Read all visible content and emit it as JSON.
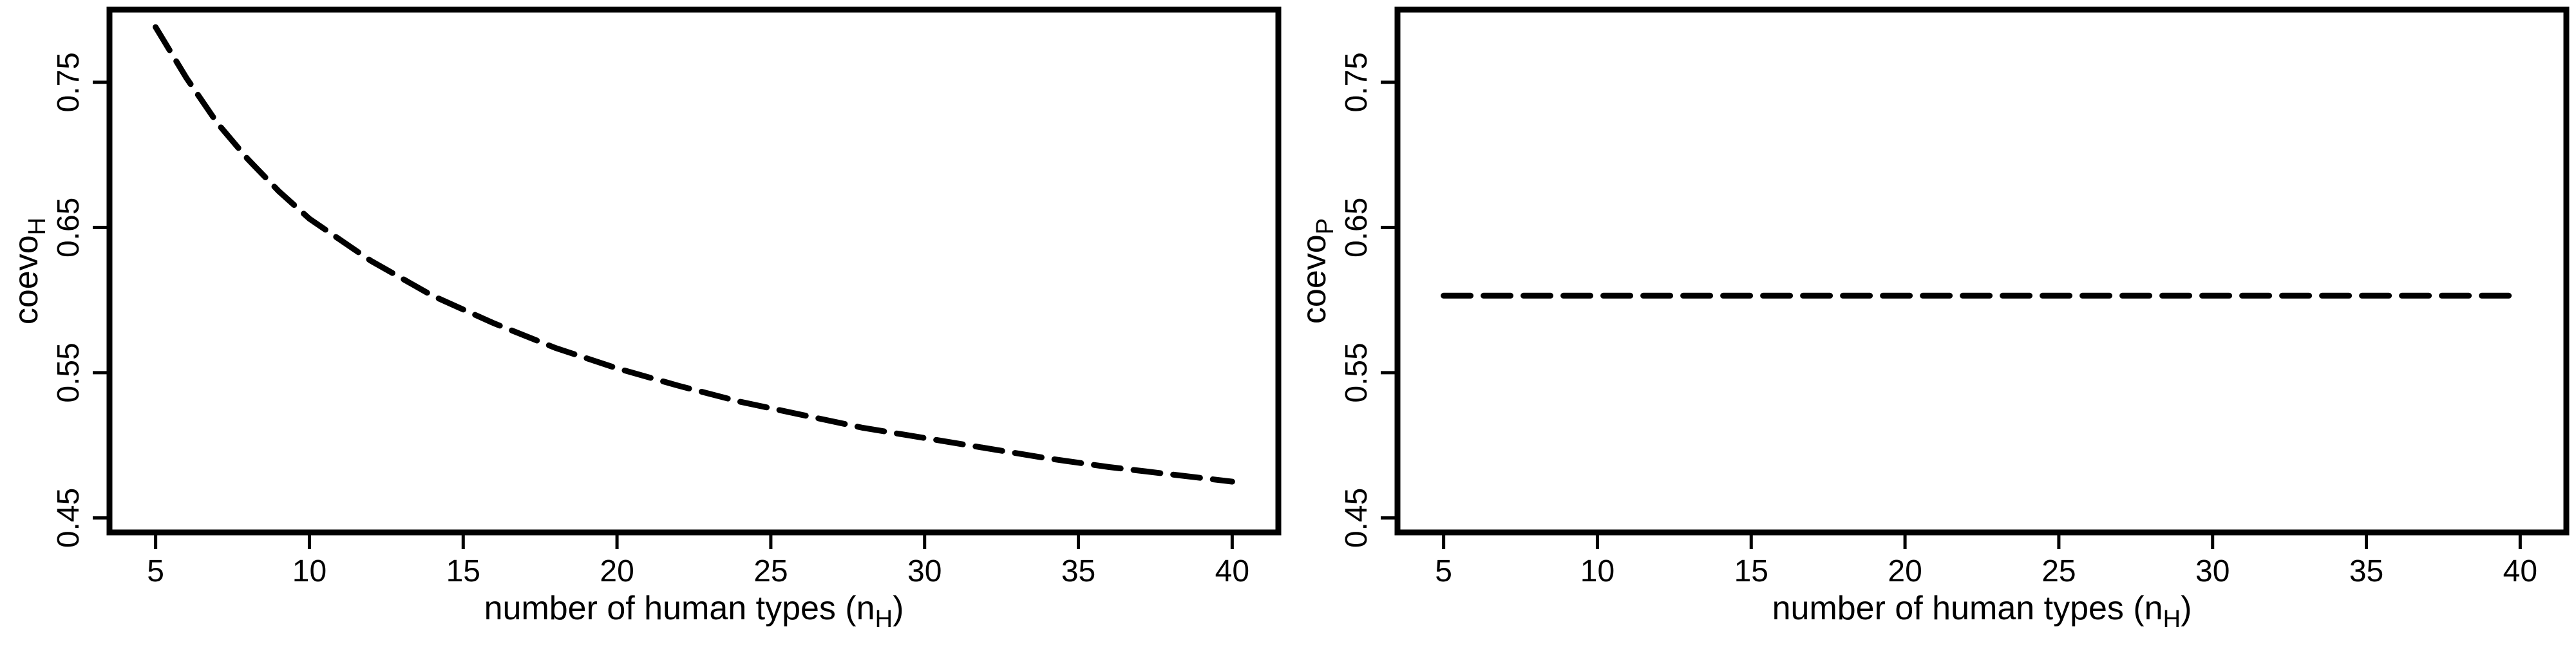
{
  "chart_data": [
    {
      "type": "line",
      "xlabel": "number of human types (n",
      "xlabel_sub": "H",
      "xlabel_end": ")",
      "ylabel": "coevo",
      "ylabel_sub": "H",
      "x": [
        5,
        6,
        7,
        8,
        9,
        10,
        12,
        14,
        16,
        18,
        20,
        22,
        24,
        26,
        28,
        30,
        32,
        34,
        36,
        38,
        40
      ],
      "series": [
        {
          "values": [
            0.788,
            0.753,
            0.722,
            0.697,
            0.675,
            0.656,
            0.627,
            0.603,
            0.584,
            0.567,
            0.553,
            0.541,
            0.53,
            0.521,
            0.512,
            0.505,
            0.498,
            0.491,
            0.485,
            0.48,
            0.475
          ],
          "style": "dashed"
        }
      ],
      "xlim": [
        3.5,
        41.5
      ],
      "ylim": [
        0.44,
        0.8
      ],
      "xticks": [
        "5",
        "10",
        "15",
        "20",
        "25",
        "30",
        "35",
        "40"
      ],
      "yticks": [
        "0.45",
        "0.55",
        "0.65",
        "0.75"
      ],
      "grid": false,
      "line_color": "#000000"
    },
    {
      "type": "line",
      "xlabel": "number of human types (n",
      "xlabel_sub": "H",
      "xlabel_end": ")",
      "ylabel": "coevo",
      "ylabel_sub": "P",
      "x": [
        5,
        40
      ],
      "series": [
        {
          "values": [
            0.603,
            0.603
          ],
          "style": "dashed"
        }
      ],
      "xlim": [
        3.5,
        41.5
      ],
      "ylim": [
        0.44,
        0.8
      ],
      "xticks": [
        "5",
        "10",
        "15",
        "20",
        "25",
        "30",
        "35",
        "40"
      ],
      "yticks": [
        "0.45",
        "0.55",
        "0.65",
        "0.75"
      ],
      "grid": false,
      "line_color": "#000000"
    }
  ]
}
